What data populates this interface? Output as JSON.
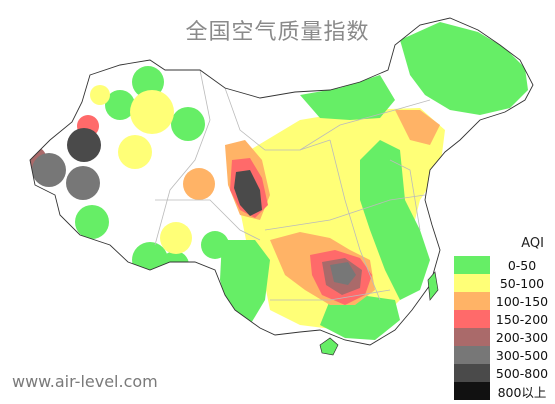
{
  "title": "全国空气质量指数",
  "footer": "www.air-level.com",
  "legend": {
    "title": "AQI",
    "items": [
      {
        "label": "0-50",
        "color": "#66ee66"
      },
      {
        "label": "50-100",
        "color": "#ffff77"
      },
      {
        "label": "100-150",
        "color": "#ffb366"
      },
      {
        "label": "150-200",
        "color": "#ff6a6a"
      },
      {
        "label": "200-300",
        "color": "#aa6a6a"
      },
      {
        "label": "300-500",
        "color": "#777777"
      },
      {
        "label": "500-800",
        "color": "#4a4a4a"
      },
      {
        "label": "800以上",
        "color": "#111111"
      }
    ]
  },
  "colors": {
    "background": "#ffffff",
    "outline": "#333333",
    "province_border": "#bbbbbb"
  }
}
